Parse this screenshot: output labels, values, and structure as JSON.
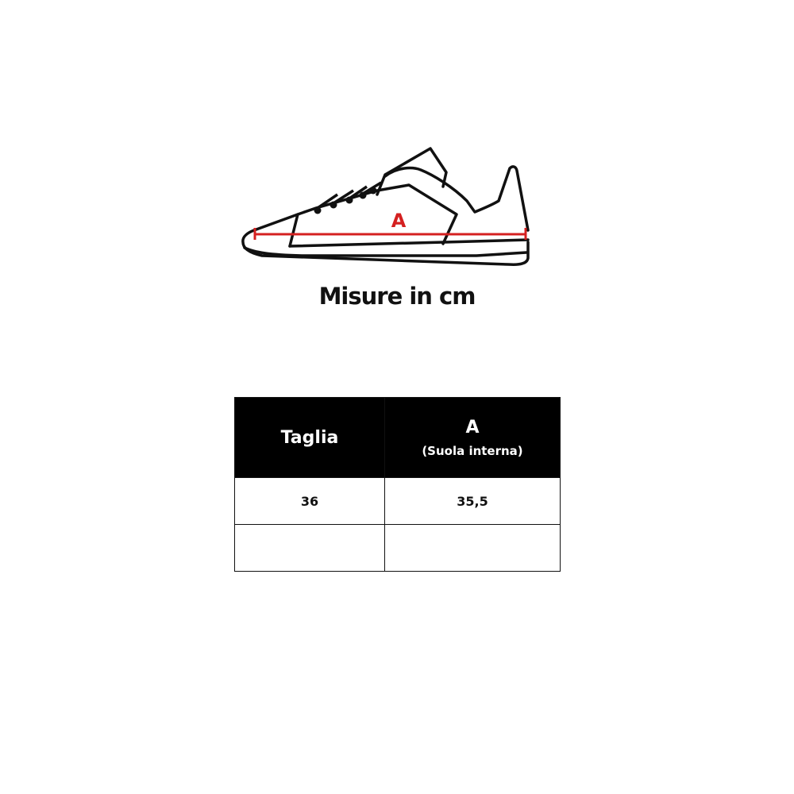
{
  "diagram": {
    "measure_label": "A",
    "measure_color": "#d42020",
    "caption": "Misure in cm"
  },
  "table": {
    "headers": {
      "size": "Taglia",
      "measure": "A",
      "measure_sub": "(Suola interna)"
    },
    "rows": [
      {
        "size": "36",
        "measure": "35,5"
      },
      {
        "size": "",
        "measure": ""
      }
    ]
  }
}
